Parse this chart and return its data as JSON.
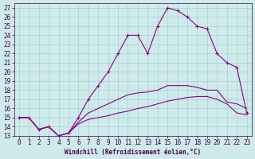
{
  "xlabel": "Windchill (Refroidissement éolien,°C)",
  "bg_color": "#ceeaea",
  "grid_color": "#aacfcf",
  "line_color": "#880088",
  "axis_color": "#440044",
  "xlim": [
    -0.5,
    23.5
  ],
  "ylim": [
    13,
    27.5
  ],
  "xticks": [
    0,
    1,
    2,
    3,
    4,
    5,
    6,
    7,
    8,
    9,
    10,
    11,
    12,
    13,
    14,
    15,
    16,
    17,
    18,
    19,
    20,
    21,
    22,
    23
  ],
  "yticks": [
    13,
    14,
    15,
    16,
    17,
    18,
    19,
    20,
    21,
    22,
    23,
    24,
    25,
    26,
    27
  ],
  "series": [
    {
      "x": [
        0,
        1,
        2,
        3,
        4,
        5,
        6,
        7,
        8,
        9,
        10,
        11,
        12,
        13,
        14,
        15,
        16,
        17,
        18,
        19,
        20,
        21,
        22,
        23
      ],
      "y": [
        15,
        15,
        13.7,
        14,
        13,
        13.3,
        15,
        17,
        18.5,
        20,
        22,
        24,
        24,
        22,
        25,
        27,
        26.7,
        26,
        25,
        24.7,
        22,
        21,
        20.5,
        15.5
      ],
      "marker": true
    },
    {
      "x": [
        0,
        1,
        2,
        3,
        4,
        5,
        6,
        7,
        8,
        9,
        10,
        11,
        12,
        13,
        14,
        15,
        16,
        17,
        18,
        19,
        20,
        21,
        22,
        23
      ],
      "y": [
        15,
        15,
        13.7,
        14,
        13,
        13.3,
        14.5,
        15.5,
        16,
        16.5,
        17,
        17.5,
        17.7,
        17.8,
        18,
        18.5,
        18.5,
        18.5,
        18.3,
        18,
        18,
        16.7,
        16.5,
        16
      ],
      "marker": false
    },
    {
      "x": [
        0,
        1,
        2,
        3,
        4,
        5,
        6,
        7,
        8,
        9,
        10,
        11,
        12,
        13,
        14,
        15,
        16,
        17,
        18,
        19,
        20,
        21,
        22,
        23
      ],
      "y": [
        15,
        15,
        13.7,
        14,
        13,
        13.3,
        14.3,
        14.8,
        15,
        15.2,
        15.5,
        15.7,
        16,
        16.2,
        16.5,
        16.8,
        17,
        17.2,
        17.3,
        17.3,
        17,
        16.5,
        15.5,
        15.3
      ],
      "marker": false
    }
  ]
}
